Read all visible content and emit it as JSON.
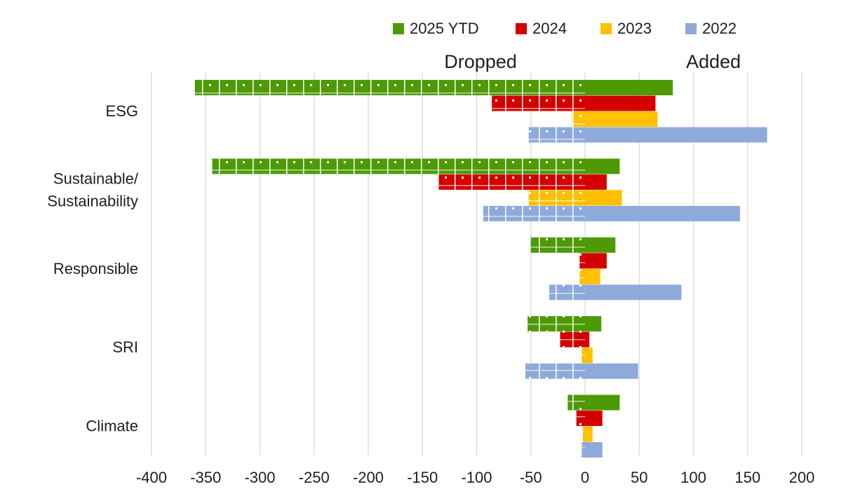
{
  "chart_data": {
    "type": "bar",
    "orientation": "horizontal-diverging",
    "categories": [
      "ESG",
      "Sustainable/ Sustainability",
      "Responsible",
      "SRI",
      "Climate"
    ],
    "category_lines": [
      [
        "ESG"
      ],
      [
        "Sustainable/",
        "Sustainability"
      ],
      [
        "Responsible"
      ],
      [
        "SRI"
      ],
      [
        "Climate"
      ]
    ],
    "section_labels": {
      "left": "Dropped",
      "right": "Added"
    },
    "xlim": [
      -400,
      200
    ],
    "xticks": [
      -400,
      -350,
      -300,
      -250,
      -200,
      -150,
      -100,
      -50,
      0,
      50,
      100,
      150,
      200
    ],
    "grid": true,
    "legend_position": "top",
    "series": [
      {
        "name": "2025 YTD",
        "color": "#4e9a06",
        "dropped": [
          -360,
          -344,
          -50,
          -53,
          -16
        ],
        "added": [
          81,
          32,
          28,
          15,
          32
        ]
      },
      {
        "name": "2024",
        "color": "#d40000",
        "dropped": [
          -86,
          -136,
          -5,
          -23,
          -8
        ],
        "added": [
          65,
          20,
          20,
          4,
          16
        ]
      },
      {
        "name": "2023",
        "color": "#ffc000",
        "dropped": [
          -12,
          -52,
          -5,
          -3,
          -2
        ],
        "added": [
          67,
          34,
          14,
          7,
          7
        ]
      },
      {
        "name": "2022",
        "color": "#8eaadb",
        "dropped": [
          -52,
          -94,
          -33,
          -55,
          -3
        ],
        "added": [
          168,
          143,
          89,
          49,
          16
        ]
      }
    ]
  }
}
